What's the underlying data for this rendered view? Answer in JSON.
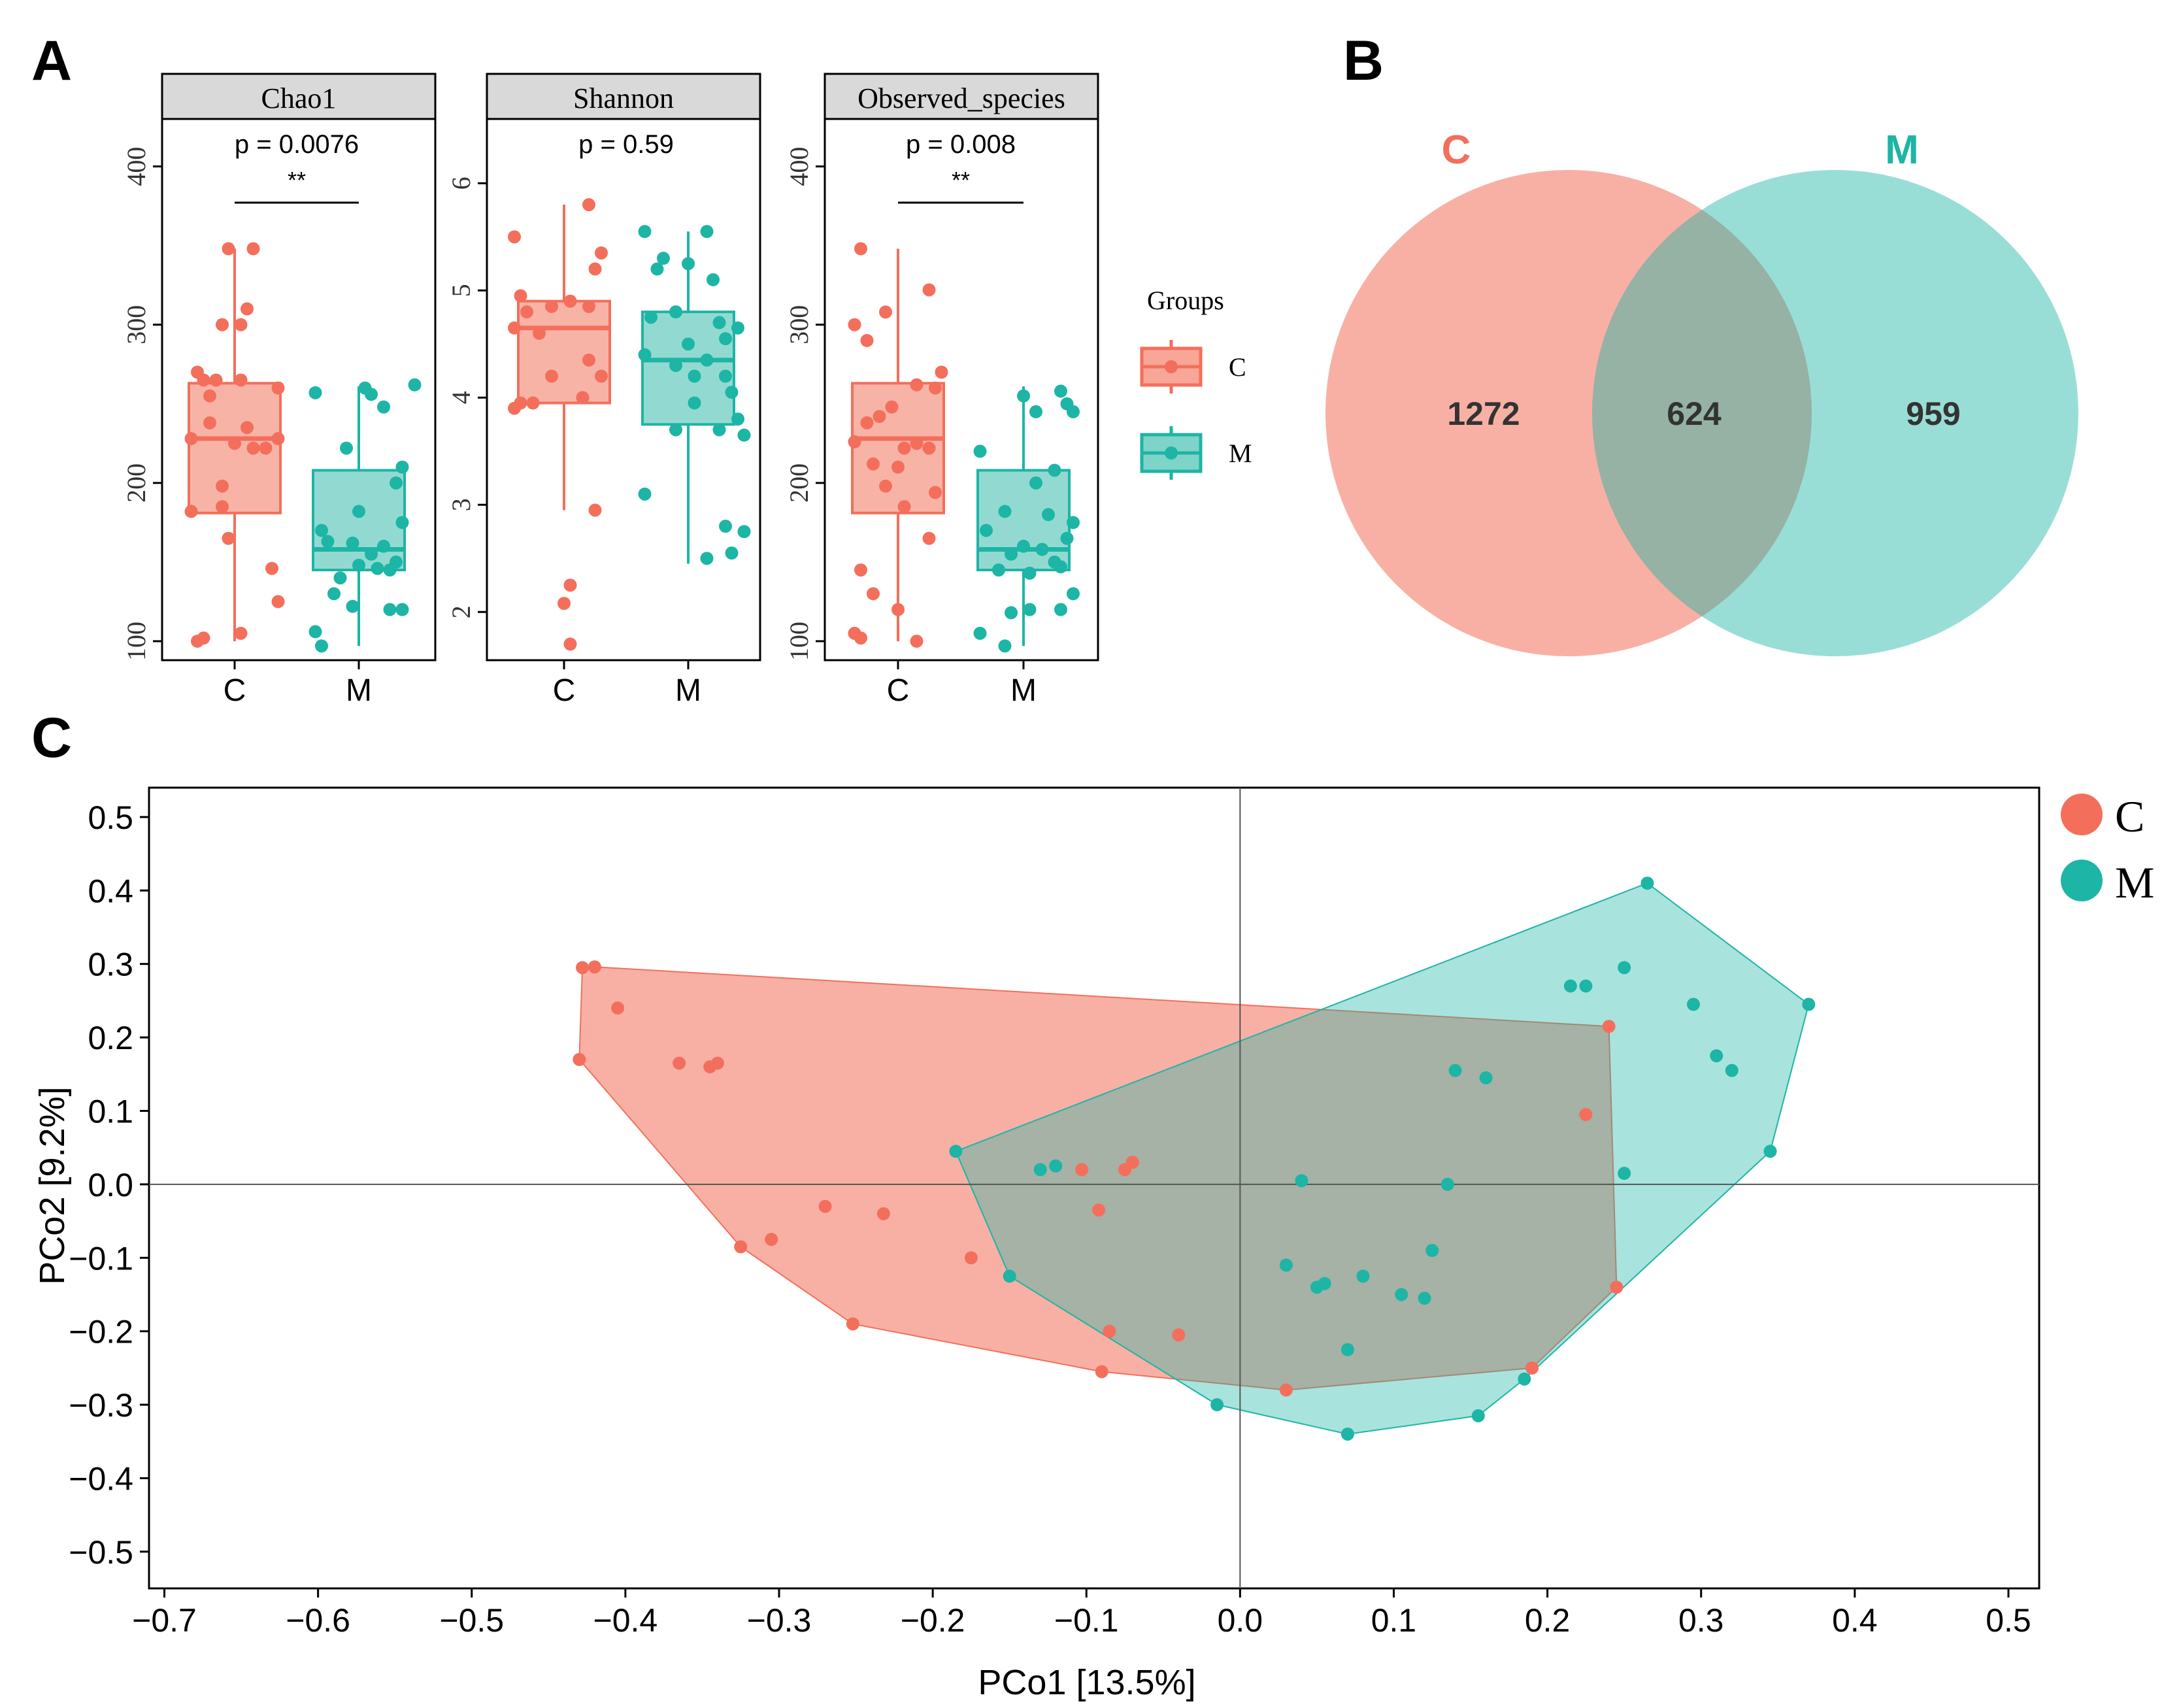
{
  "colors": {
    "C": "#F36F5B",
    "M": "#1DB5A5",
    "C_fill": "#F7A698",
    "M_fill": "#7FD4C9",
    "strip": "#D9D9D9"
  },
  "panel_labels": {
    "a": "A",
    "b": "B",
    "c": "C"
  },
  "chart_data": [
    {
      "type": "box",
      "id": "chao1",
      "title": "Chao1",
      "categories": [
        "C",
        "M"
      ],
      "ylim": [
        88,
        430
      ],
      "yticks": [
        100,
        200,
        300,
        400
      ],
      "p_text": "p = 0.0076",
      "sig": "**",
      "boxes": [
        {
          "group": "C",
          "q1": 181,
          "median": 228,
          "q3": 263,
          "lower": 100,
          "upper": 348
        },
        {
          "group": "M",
          "q1": 145,
          "median": 158,
          "q3": 208,
          "lower": 97,
          "upper": 261
        }
      ],
      "points": {
        "C": [
          [
            -0.05,
            348
          ],
          [
            0.15,
            348
          ],
          [
            0.1,
            310
          ],
          [
            -0.1,
            300
          ],
          [
            0.05,
            300
          ],
          [
            -0.3,
            270
          ],
          [
            -0.25,
            265
          ],
          [
            -0.15,
            265
          ],
          [
            0.05,
            265
          ],
          [
            0.35,
            260
          ],
          [
            -0.2,
            255
          ],
          [
            -0.2,
            238
          ],
          [
            0.1,
            235
          ],
          [
            -0.35,
            228
          ],
          [
            0.35,
            228
          ],
          [
            0.0,
            225
          ],
          [
            0.15,
            222
          ],
          [
            0.25,
            222
          ],
          [
            -0.1,
            198
          ],
          [
            -0.1,
            185
          ],
          [
            -0.35,
            182
          ],
          [
            -0.05,
            165
          ],
          [
            0.3,
            146
          ],
          [
            0.35,
            125
          ],
          [
            0.05,
            105
          ],
          [
            -0.25,
            102
          ],
          [
            -0.3,
            100
          ]
        ],
        "M": [
          [
            0.05,
            260
          ],
          [
            0.1,
            256
          ],
          [
            0.45,
            262
          ],
          [
            -0.35,
            257
          ],
          [
            0.2,
            248
          ],
          [
            0.35,
            210
          ],
          [
            -0.1,
            222
          ],
          [
            0.3,
            200
          ],
          [
            0.0,
            182
          ],
          [
            0.35,
            175
          ],
          [
            -0.3,
            170
          ],
          [
            -0.25,
            163
          ],
          [
            -0.05,
            162
          ],
          [
            0.2,
            160
          ],
          [
            0.1,
            155
          ],
          [
            0.3,
            150
          ],
          [
            0.0,
            148
          ],
          [
            0.15,
            146
          ],
          [
            0.25,
            145
          ],
          [
            -0.15,
            140
          ],
          [
            -0.2,
            130
          ],
          [
            -0.05,
            122
          ],
          [
            0.35,
            120
          ],
          [
            0.25,
            120
          ],
          [
            -0.35,
            106
          ],
          [
            -0.3,
            97
          ]
        ]
      }
    },
    {
      "type": "box",
      "id": "shannon",
      "title": "Shannon",
      "categories": [
        "C",
        "M"
      ],
      "ylim": [
        1.55,
        6.6
      ],
      "yticks": [
        2,
        3,
        4,
        5,
        6
      ],
      "p_text": "p = 0.59",
      "sig": "",
      "boxes": [
        {
          "group": "C",
          "q1": 3.95,
          "median": 4.65,
          "q3": 4.9,
          "lower": 2.95,
          "upper": 5.8
        },
        {
          "group": "M",
          "q1": 3.75,
          "median": 4.35,
          "q3": 4.8,
          "lower": 2.45,
          "upper": 5.55
        }
      ],
      "points": {
        "C": [
          [
            0.2,
            5.8
          ],
          [
            -0.4,
            5.5
          ],
          [
            0.3,
            5.35
          ],
          [
            0.25,
            5.2
          ],
          [
            -0.35,
            4.95
          ],
          [
            -0.1,
            4.85
          ],
          [
            0.05,
            4.9
          ],
          [
            0.2,
            4.85
          ],
          [
            -0.3,
            4.8
          ],
          [
            -0.4,
            4.65
          ],
          [
            -0.2,
            4.6
          ],
          [
            0.2,
            4.35
          ],
          [
            -0.1,
            4.2
          ],
          [
            0.3,
            4.2
          ],
          [
            0.15,
            4.0
          ],
          [
            -0.35,
            3.95
          ],
          [
            -0.25,
            3.95
          ],
          [
            -0.4,
            3.9
          ],
          [
            0.25,
            2.95
          ],
          [
            0.05,
            2.25
          ],
          [
            0.0,
            2.08
          ],
          [
            0.05,
            1.7
          ]
        ],
        "M": [
          [
            -0.35,
            5.55
          ],
          [
            0.15,
            5.55
          ],
          [
            -0.2,
            5.3
          ],
          [
            -0.25,
            5.2
          ],
          [
            0.0,
            5.25
          ],
          [
            0.2,
            5.1
          ],
          [
            -0.3,
            4.75
          ],
          [
            -0.1,
            4.8
          ],
          [
            0.4,
            4.65
          ],
          [
            0.25,
            4.7
          ],
          [
            0.3,
            4.55
          ],
          [
            -0.35,
            4.4
          ],
          [
            0.0,
            4.5
          ],
          [
            0.15,
            4.35
          ],
          [
            -0.1,
            4.3
          ],
          [
            0.05,
            4.2
          ],
          [
            0.3,
            4.2
          ],
          [
            0.35,
            4.05
          ],
          [
            0.05,
            3.95
          ],
          [
            0.4,
            3.8
          ],
          [
            -0.1,
            3.7
          ],
          [
            0.25,
            3.7
          ],
          [
            0.45,
            3.65
          ],
          [
            -0.35,
            3.1
          ],
          [
            0.45,
            2.75
          ],
          [
            0.3,
            2.8
          ],
          [
            0.35,
            2.55
          ],
          [
            0.15,
            2.5
          ]
        ]
      }
    },
    {
      "type": "box",
      "id": "observed_species",
      "title": "Observed_species",
      "categories": [
        "C",
        "M"
      ],
      "ylim": [
        88,
        430
      ],
      "yticks": [
        100,
        200,
        300,
        400
      ],
      "p_text": "p = 0.008",
      "sig": "**",
      "boxes": [
        {
          "group": "C",
          "q1": 181,
          "median": 228,
          "q3": 263,
          "lower": 100,
          "upper": 348
        },
        {
          "group": "M",
          "q1": 145,
          "median": 158,
          "q3": 208,
          "lower": 97,
          "upper": 261
        }
      ],
      "points": {
        "C": [
          [
            -0.3,
            348
          ],
          [
            0.25,
            322
          ],
          [
            -0.1,
            308
          ],
          [
            -0.35,
            300
          ],
          [
            -0.25,
            290
          ],
          [
            0.35,
            270
          ],
          [
            0.15,
            262
          ],
          [
            0.3,
            260
          ],
          [
            -0.05,
            248
          ],
          [
            -0.15,
            242
          ],
          [
            -0.25,
            238
          ],
          [
            0.15,
            225
          ],
          [
            0.25,
            222
          ],
          [
            -0.35,
            226
          ],
          [
            0.05,
            222
          ],
          [
            -0.2,
            212
          ],
          [
            0.0,
            210
          ],
          [
            -0.1,
            198
          ],
          [
            0.3,
            194
          ],
          [
            0.05,
            185
          ],
          [
            0.25,
            165
          ],
          [
            -0.3,
            145
          ],
          [
            -0.2,
            130
          ],
          [
            -0.35,
            105
          ],
          [
            -0.3,
            102
          ],
          [
            0.15,
            100
          ],
          [
            0.0,
            120
          ]
        ],
        "M": [
          [
            0.3,
            258
          ],
          [
            0.0,
            255
          ],
          [
            0.35,
            250
          ],
          [
            0.1,
            245
          ],
          [
            0.4,
            245
          ],
          [
            -0.35,
            220
          ],
          [
            0.25,
            208
          ],
          [
            0.1,
            200
          ],
          [
            -0.15,
            182
          ],
          [
            0.2,
            180
          ],
          [
            0.4,
            175
          ],
          [
            -0.3,
            170
          ],
          [
            0.35,
            165
          ],
          [
            0.0,
            160
          ],
          [
            0.15,
            158
          ],
          [
            -0.1,
            155
          ],
          [
            0.25,
            150
          ],
          [
            0.3,
            147
          ],
          [
            -0.2,
            145
          ],
          [
            0.05,
            143
          ],
          [
            0.4,
            130
          ],
          [
            0.05,
            120
          ],
          [
            -0.1,
            118
          ],
          [
            -0.35,
            105
          ],
          [
            0.3,
            120
          ],
          [
            -0.15,
            97
          ]
        ]
      }
    },
    {
      "type": "venn",
      "id": "venn",
      "sets": [
        "C",
        "M"
      ],
      "only_C": 1272,
      "shared": 624,
      "only_M": 959
    },
    {
      "type": "scatter",
      "id": "pcoa",
      "xlabel": "PCo1 [13.5%]",
      "ylabel": "PCo2 [9.2%]",
      "xlim": [
        -0.71,
        0.52
      ],
      "ylim": [
        -0.55,
        0.54
      ],
      "xticks": [
        -0.7,
        -0.6,
        -0.5,
        -0.4,
        -0.3,
        -0.2,
        -0.1,
        0.0,
        0.1,
        0.2,
        0.3,
        0.4,
        0.5
      ],
      "yticks": [
        -0.5,
        -0.4,
        -0.3,
        -0.2,
        -0.1,
        0.0,
        0.1,
        0.2,
        0.3,
        0.4,
        0.5
      ],
      "series": [
        {
          "name": "C",
          "points": [
            [
              -0.428,
              0.295
            ],
            [
              -0.42,
              0.296
            ],
            [
              -0.405,
              0.24
            ],
            [
              -0.43,
              0.17
            ],
            [
              -0.365,
              0.165
            ],
            [
              -0.345,
              0.16
            ],
            [
              -0.34,
              0.165
            ],
            [
              -0.325,
              -0.085
            ],
            [
              -0.305,
              -0.075
            ],
            [
              -0.27,
              -0.03
            ],
            [
              -0.252,
              -0.19
            ],
            [
              -0.232,
              -0.04
            ],
            [
              -0.175,
              -0.1
            ],
            [
              -0.103,
              0.02
            ],
            [
              -0.075,
              0.02
            ],
            [
              -0.07,
              0.03
            ],
            [
              -0.092,
              -0.035
            ],
            [
              -0.085,
              -0.2
            ],
            [
              -0.09,
              -0.255
            ],
            [
              -0.04,
              -0.205
            ],
            [
              0.03,
              -0.28
            ],
            [
              0.24,
              0.215
            ],
            [
              0.225,
              0.095
            ],
            [
              0.245,
              -0.14
            ],
            [
              0.19,
              -0.25
            ]
          ],
          "hull": [
            [
              -0.42,
              0.296
            ],
            [
              0.24,
              0.215
            ],
            [
              0.245,
              -0.14
            ],
            [
              0.19,
              -0.25
            ],
            [
              0.03,
              -0.28
            ],
            [
              -0.09,
              -0.255
            ],
            [
              -0.252,
              -0.19
            ],
            [
              -0.325,
              -0.085
            ],
            [
              -0.43,
              0.17
            ],
            [
              -0.428,
              0.295
            ]
          ]
        },
        {
          "name": "M",
          "points": [
            [
              -0.185,
              0.045
            ],
            [
              -0.13,
              0.02
            ],
            [
              -0.12,
              0.025
            ],
            [
              -0.15,
              -0.125
            ],
            [
              -0.015,
              -0.3
            ],
            [
              0.04,
              0.005
            ],
            [
              0.03,
              -0.11
            ],
            [
              0.05,
              -0.14
            ],
            [
              0.055,
              -0.135
            ],
            [
              0.08,
              -0.125
            ],
            [
              0.105,
              -0.15
            ],
            [
              0.12,
              -0.155
            ],
            [
              0.07,
              -0.225
            ],
            [
              0.07,
              -0.34
            ],
            [
              0.125,
              -0.09
            ],
            [
              0.135,
              0.0
            ],
            [
              0.14,
              0.155
            ],
            [
              0.16,
              0.145
            ],
            [
              0.155,
              -0.315
            ],
            [
              0.185,
              -0.265
            ],
            [
              0.215,
              0.27
            ],
            [
              0.225,
              0.27
            ],
            [
              0.25,
              0.295
            ],
            [
              0.25,
              0.015
            ],
            [
              0.265,
              0.41
            ],
            [
              0.295,
              0.245
            ],
            [
              0.31,
              0.175
            ],
            [
              0.32,
              0.155
            ],
            [
              0.345,
              0.045
            ],
            [
              0.37,
              0.245
            ]
          ],
          "hull": [
            [
              0.265,
              0.41
            ],
            [
              0.37,
              0.245
            ],
            [
              0.345,
              0.045
            ],
            [
              0.185,
              -0.265
            ],
            [
              0.155,
              -0.315
            ],
            [
              0.07,
              -0.34
            ],
            [
              -0.015,
              -0.3
            ],
            [
              -0.15,
              -0.125
            ],
            [
              -0.185,
              0.045
            ],
            [
              0.265,
              0.41
            ]
          ]
        }
      ]
    }
  ],
  "legend_a": {
    "title": "Groups",
    "items": [
      "C",
      "M"
    ]
  },
  "legend_c": {
    "items": [
      "C",
      "M"
    ]
  }
}
